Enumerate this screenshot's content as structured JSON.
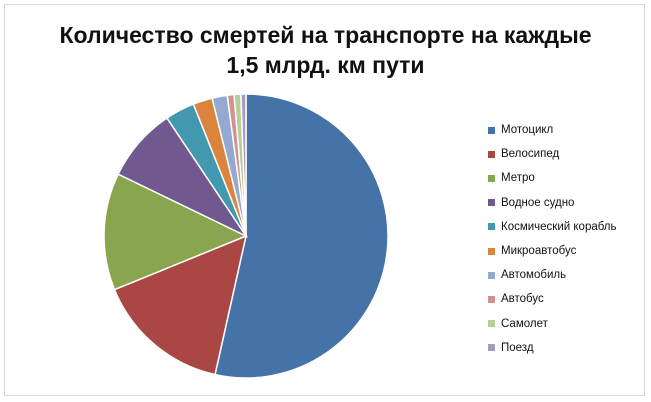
{
  "chart_data": {
    "type": "pie",
    "title_lines": [
      "Количество смертей на транспорте на каждые",
      "1,5 млрд. км пути"
    ],
    "legend_position": "right",
    "slices": [
      {
        "name": "Мотоцикл",
        "value": 55.8,
        "color": "#4572A7"
      },
      {
        "name": "Велосипед",
        "value": 16.0,
        "color": "#AA4643"
      },
      {
        "name": "Метро",
        "value": 13.9,
        "color": "#89A54E"
      },
      {
        "name": "Водное  судно",
        "value": 8.8,
        "color": "#71588F"
      },
      {
        "name": "Космический корабль",
        "value": 3.5,
        "color": "#4198AF"
      },
      {
        "name": "Микроавтобус",
        "value": 2.3,
        "color": "#DB843D"
      },
      {
        "name": "Автомобиль",
        "value": 1.8,
        "color": "#93A9CF"
      },
      {
        "name": "Автобус",
        "value": 0.8,
        "color": "#D19392"
      },
      {
        "name": "Самолет",
        "value": 0.8,
        "color": "#B9CD96"
      },
      {
        "name": "Поезд",
        "value": 0.6,
        "color": "#A99BBD"
      }
    ]
  }
}
